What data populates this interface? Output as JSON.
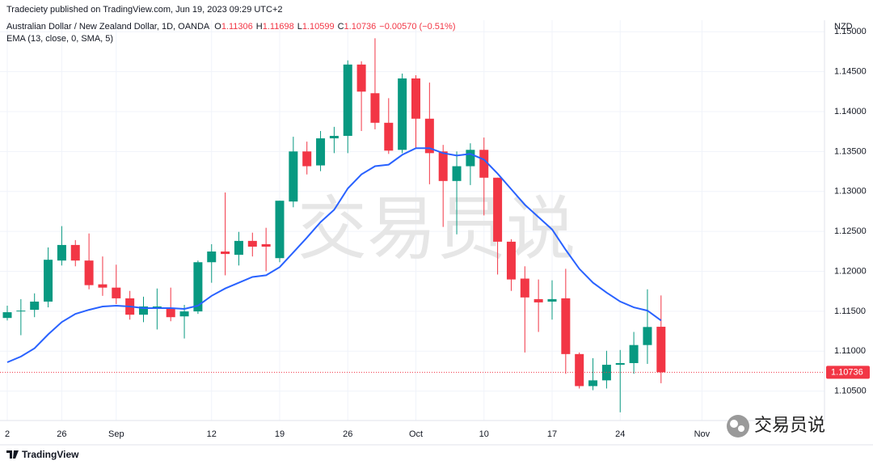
{
  "chart_data": {
    "type": "candlestick",
    "header": "Tradeciety published on TradingView.com, Jun 19, 2023 09:29 UTC+2",
    "title": "Australian Dollar / New Zealand Dollar, 1D, OANDA",
    "ohlc_prefixes": [
      "O",
      "H",
      "L",
      "C"
    ],
    "change_label": "−0.00570 (−0.51%)",
    "currency": "NZD",
    "categories": [
      "2",
      null,
      null,
      null,
      "26",
      null,
      null,
      null,
      "Sep",
      null,
      null,
      null,
      null,
      null,
      null,
      "12",
      null,
      null,
      null,
      null,
      "19",
      null,
      null,
      null,
      null,
      "26",
      null,
      null,
      null,
      null,
      "Oct",
      null,
      null,
      null,
      null,
      "10",
      null,
      null,
      null,
      null,
      "17",
      null,
      null,
      null,
      null,
      "24",
      null,
      null,
      null,
      null,
      null,
      "Nov"
    ],
    "open": [
      1.11416,
      1.11498,
      1.11518,
      1.11621,
      1.12135,
      1.1233,
      1.12135,
      1.11837,
      1.11796,
      1.11662,
      1.11457,
      1.11539,
      1.11529,
      1.11436,
      1.11498,
      1.12114,
      1.12248,
      1.12207,
      1.12381,
      1.1234,
      1.12165,
      1.12874,
      1.13501,
      1.13326,
      1.13665,
      1.13696,
      1.14589,
      1.1423,
      1.1386,
      1.13521,
      1.14415,
      1.13911,
      1.13501,
      1.13131,
      1.13316,
      1.13521,
      1.13172,
      1.12371,
      1.11909,
      1.11652,
      1.11621,
      1.11662,
      1.10964,
      1.10563,
      1.10635,
      1.1083,
      1.10851,
      1.11077,
      1.11306,
      null,
      null,
      null
    ],
    "high": [
      1.1157,
      1.11652,
      1.11724,
      1.12299,
      1.12566,
      1.12391,
      1.12474,
      1.12186,
      1.12083,
      1.11755,
      1.11683,
      1.11785,
      1.11796,
      1.1158,
      1.12135,
      1.1234,
      1.12987,
      1.12494,
      1.12484,
      1.12545,
      1.12884,
      1.13685,
      1.13624,
      1.13757,
      1.13809,
      1.14641,
      1.1463,
      1.14918,
      1.14168,
      1.14476,
      1.14456,
      1.14363,
      1.13583,
      1.13501,
      1.13603,
      1.13675,
      1.13172,
      1.12402,
      1.12063,
      1.11898,
      1.11888,
      1.12032,
      1.10984,
      1.10913,
      1.11005,
      1.11015,
      1.11241,
      1.11775,
      1.11698,
      null,
      null,
      null
    ],
    "low": [
      1.11385,
      1.112,
      1.11426,
      1.11549,
      1.12073,
      1.12063,
      1.11775,
      1.11693,
      1.1159,
      1.11395,
      1.11364,
      1.11272,
      1.11375,
      1.11159,
      1.11467,
      1.11857,
      1.1195,
      1.12073,
      1.12186,
      1.12001,
      1.12114,
      1.12802,
      1.13213,
      1.13254,
      1.1348,
      1.1348,
      1.13757,
      1.13778,
      1.1347,
      1.1348,
      1.13542,
      1.1309,
      1.12556,
      1.12463,
      1.1308,
      1.127,
      1.1196,
      1.11755,
      1.10984,
      1.11241,
      1.11395,
      1.10717,
      1.10533,
      1.10512,
      1.10533,
      1.10235,
      1.10717,
      1.10841,
      1.10599,
      null,
      null,
      null
    ],
    "close": [
      1.11488,
      1.11508,
      1.11621,
      1.12145,
      1.1233,
      1.12135,
      1.11827,
      1.11796,
      1.11662,
      1.11457,
      1.1156,
      1.1156,
      1.11426,
      1.11498,
      1.12114,
      1.12248,
      1.12217,
      1.12381,
      1.12309,
      1.12309,
      1.12884,
      1.13501,
      1.13316,
      1.13665,
      1.13696,
      1.14589,
      1.1425,
      1.1386,
      1.13511,
      1.14415,
      1.13911,
      1.1348,
      1.13131,
      1.13316,
      1.13521,
      1.13172,
      1.12371,
      1.11898,
      1.11673,
      1.11611,
      1.11652,
      1.10964,
      1.10563,
      1.10635,
      1.1083,
      1.10851,
      1.11077,
      1.11303,
      1.10736,
      null,
      null,
      null
    ],
    "up_color": "#089981",
    "down_color": "#f23645",
    "overlay": {
      "name": "EMA (13, close, 0, SMA, 5)",
      "color": "#2962ff",
      "values": [
        1.10861,
        1.10933,
        1.11036,
        1.1121,
        1.11364,
        1.11467,
        1.11518,
        1.1156,
        1.1157,
        1.1156,
        1.11539,
        1.11539,
        1.11539,
        1.11529,
        1.1157,
        1.11693,
        1.11785,
        1.11857,
        1.11929,
        1.1195,
        1.12053,
        1.12237,
        1.12422,
        1.12617,
        1.12771,
        1.13038,
        1.13213,
        1.13316,
        1.13336,
        1.13459,
        1.13542,
        1.13542,
        1.1348,
        1.13449,
        1.1347,
        1.13398,
        1.13223,
        1.13028,
        1.12833,
        1.12679,
        1.12525,
        1.12268,
        1.12032,
        1.11857,
        1.11734,
        1.11621,
        1.11549,
        1.11508,
        1.11385,
        null,
        null,
        null
      ]
    },
    "ylim": [
      1.10132,
      1.15144
    ],
    "yticks": [
      {
        "value": 1.105,
        "label": "1.10500"
      },
      {
        "value": 1.11,
        "label": "1.11000"
      },
      {
        "value": 1.115,
        "label": "1.11500"
      },
      {
        "value": 1.12,
        "label": "1.12000"
      },
      {
        "value": 1.125,
        "label": "1.12500"
      },
      {
        "value": 1.13,
        "label": "1.13000"
      },
      {
        "value": 1.135,
        "label": "1.13500"
      },
      {
        "value": 1.14,
        "label": "1.14000"
      },
      {
        "value": 1.145,
        "label": "1.14500"
      },
      {
        "value": 1.15,
        "label": "1.15000"
      }
    ],
    "grid": true,
    "last_price_line": true,
    "watermark": "交易员说",
    "social_label": "交易员说",
    "footer_brand": "TradingView"
  }
}
